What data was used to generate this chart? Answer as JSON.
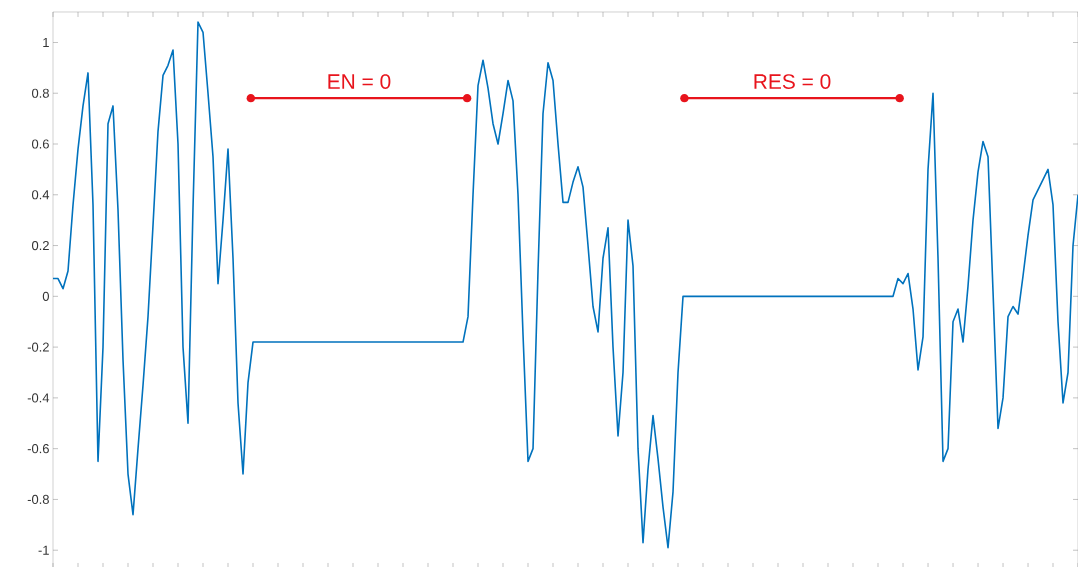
{
  "chart_data": {
    "type": "line",
    "categories": [
      null,
      null,
      null,
      null,
      null,
      null,
      null,
      null,
      null,
      null,
      null,
      null,
      null,
      null,
      null,
      null,
      null,
      null,
      null,
      null,
      null,
      null,
      null,
      null,
      null,
      null,
      null,
      null,
      null,
      null,
      null,
      null,
      null,
      null,
      null,
      null,
      null,
      null,
      null,
      null,
      null,
      null,
      null,
      null,
      null,
      null,
      null,
      null,
      null,
      null,
      null,
      null,
      null,
      null,
      null,
      null,
      null,
      null,
      null,
      null,
      null,
      null,
      null,
      null,
      null,
      null,
      null,
      null,
      null,
      null,
      null,
      null,
      null,
      null,
      null,
      null,
      null,
      null,
      null,
      null,
      null,
      null,
      null,
      null,
      null,
      null,
      null,
      null,
      null,
      null,
      null,
      null,
      null,
      null,
      null,
      null,
      null,
      null,
      null,
      null,
      null,
      null,
      null,
      null,
      null,
      null,
      null,
      null,
      null,
      null,
      null,
      null,
      null,
      null,
      null,
      null,
      null,
      null,
      null,
      null,
      null,
      null,
      null,
      null,
      null,
      null,
      null,
      null,
      null,
      null,
      null,
      null,
      null,
      null,
      null,
      null,
      null,
      null,
      null,
      null,
      null,
      null,
      null,
      null,
      null,
      null,
      null,
      null,
      null,
      null,
      null,
      null,
      null,
      null,
      null,
      null,
      null,
      null,
      null,
      null,
      null,
      null,
      null,
      null,
      null,
      null,
      null,
      null,
      null,
      null,
      null,
      null,
      null,
      null,
      null,
      null,
      null,
      null,
      null,
      null,
      null,
      null,
      null,
      null,
      null,
      null,
      null,
      null,
      null,
      null,
      null,
      null,
      null,
      null,
      null,
      null,
      null,
      null,
      null,
      null,
      null,
      null,
      null,
      null,
      null,
      null
    ],
    "series": [
      {
        "color": "#0072bd",
        "values": [
          0.07,
          0.07,
          0.03,
          0.1,
          0.36,
          0.58,
          0.75,
          0.88,
          0.36,
          -0.65,
          -0.2,
          0.68,
          0.75,
          0.34,
          -0.25,
          -0.7,
          -0.86,
          -0.6,
          -0.35,
          -0.08,
          0.28,
          0.65,
          0.87,
          0.91,
          0.97,
          0.6,
          -0.2,
          -0.5,
          0.35,
          1.08,
          1.04,
          0.8,
          0.55,
          0.05,
          0.3,
          0.58,
          0.15,
          -0.42,
          -0.7,
          -0.34,
          -0.18,
          -0.18,
          -0.18,
          -0.18,
          -0.18,
          -0.18,
          -0.18,
          -0.18,
          -0.18,
          -0.18,
          -0.18,
          -0.18,
          -0.18,
          -0.18,
          -0.18,
          -0.18,
          -0.18,
          -0.18,
          -0.18,
          -0.18,
          -0.18,
          -0.18,
          -0.18,
          -0.18,
          -0.18,
          -0.18,
          -0.18,
          -0.18,
          -0.18,
          -0.18,
          -0.18,
          -0.18,
          -0.18,
          -0.18,
          -0.18,
          -0.18,
          -0.18,
          -0.18,
          -0.18,
          -0.18,
          -0.18,
          -0.18,
          -0.18,
          -0.08,
          0.4,
          0.83,
          0.93,
          0.82,
          0.68,
          0.6,
          0.72,
          0.85,
          0.77,
          0.4,
          -0.15,
          -0.65,
          -0.6,
          0.1,
          0.72,
          0.92,
          0.85,
          0.6,
          0.37,
          0.37,
          0.45,
          0.51,
          0.43,
          0.2,
          -0.04,
          -0.14,
          0.15,
          0.27,
          -0.2,
          -0.55,
          -0.3,
          0.3,
          0.12,
          -0.6,
          -0.97,
          -0.68,
          -0.47,
          -0.64,
          -0.83,
          -0.99,
          -0.77,
          -0.3,
          0,
          0,
          0,
          0,
          0,
          0,
          0,
          0,
          0,
          0,
          0,
          0,
          0,
          0,
          0,
          0,
          0,
          0,
          0,
          0,
          0,
          0,
          0,
          0,
          0,
          0,
          0,
          0,
          0,
          0,
          0,
          0,
          0,
          0,
          0,
          0,
          0,
          0,
          0,
          0,
          0,
          0,
          0,
          0.07,
          0.05,
          0.09,
          -0.05,
          -0.29,
          -0.16,
          0.5,
          0.8,
          0.15,
          -0.65,
          -0.6,
          -0.1,
          -0.05,
          -0.18,
          0.04,
          0.3,
          0.49,
          0.61,
          0.55,
          0.02,
          -0.52,
          -0.4,
          -0.08,
          -0.04,
          -0.07,
          0.08,
          0.24,
          0.38,
          0.42,
          0.46,
          0.5,
          0.36,
          -0.1,
          -0.42,
          -0.3,
          0.2,
          0.4
        ]
      }
    ],
    "ylim": [
      -1.07,
      1.12
    ],
    "yticks": [
      -1,
      -0.8,
      -0.6,
      -0.4,
      -0.2,
      0,
      0.2,
      0.4,
      0.6,
      0.8,
      1
    ],
    "tick_labels": "y",
    "line_style": "solid",
    "annotations": [
      "EN = 0",
      "RES = 0"
    ]
  }
}
